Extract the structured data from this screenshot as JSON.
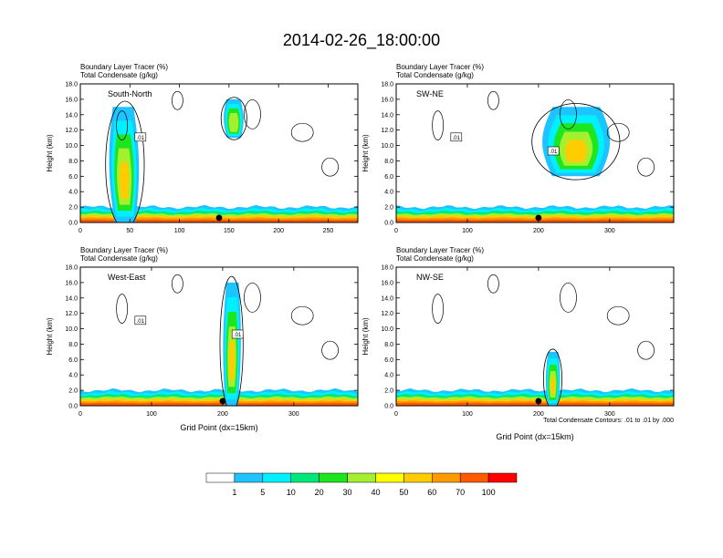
{
  "title": "2014-02-26_18:00:00",
  "variables": [
    "Boundary Layer Tracer   (%)",
    "Total Condensate   (g/kg)"
  ],
  "colorbar": {
    "labels": [
      "1",
      "5",
      "10",
      "20",
      "30",
      "40",
      "50",
      "60",
      "70",
      "100"
    ],
    "colors": [
      "#ffffff",
      "#2e8bff",
      "#1ec4ff",
      "#00f0ff",
      "#00e87a",
      "#1ee61e",
      "#a4f030",
      "#ffff00",
      "#ffcc00",
      "#ff9a00",
      "#ff5a00",
      "#ff0000"
    ]
  },
  "contour_note": "Total Condensate Contours: .01 to .01 by .000",
  "xlabel": "Grid Point (dx=15km)",
  "ylabel": "Height (km)",
  "chart_data": [
    {
      "type": "heatmap",
      "panel": "South-North",
      "title": "Boundary Layer Tracer (%) / Total Condensate (g/kg)",
      "xlabel": "",
      "ylabel": "Height (km)",
      "xlim": [
        0,
        280
      ],
      "ylim": [
        0,
        18
      ],
      "xticks": [
        0,
        50,
        100,
        150,
        200,
        250
      ],
      "yticks": [
        0,
        2,
        4,
        6,
        8,
        10,
        12,
        14,
        16,
        18
      ],
      "contour_labels": [
        ".01"
      ],
      "features": [
        {
          "name": "boundary layer",
          "x_range": [
            0,
            280
          ],
          "z_top_km": 2.0,
          "max_pct": 100
        },
        {
          "name": "deep convective plume",
          "x_range": [
            30,
            60
          ],
          "z_top_km": 15.0,
          "max_pct": 70
        },
        {
          "name": "upper level cloud",
          "x_range": [
            145,
            165
          ],
          "z_range_km": [
            11,
            16
          ],
          "max_pct": 40
        }
      ],
      "marker_x": 140
    },
    {
      "type": "heatmap",
      "panel": "SW-NE",
      "title": "Boundary Layer Tracer (%) / Total Condensate (g/kg)",
      "xlabel": "",
      "ylabel": "Height (km)",
      "xlim": [
        0,
        390
      ],
      "ylim": [
        0,
        18
      ],
      "xticks": [
        0,
        100,
        200,
        300
      ],
      "yticks": [
        0,
        2,
        4,
        6,
        8,
        10,
        12,
        14,
        16,
        18
      ],
      "contour_labels": [
        ".01",
        ".01"
      ],
      "features": [
        {
          "name": "boundary layer",
          "x_range": [
            0,
            390
          ],
          "z_top_km": 2.0,
          "max_pct": 100
        },
        {
          "name": "upper plume",
          "x_range": [
            205,
            300
          ],
          "z_range_km": [
            6,
            15
          ],
          "max_pct": 60
        }
      ],
      "marker_x": 200
    },
    {
      "type": "heatmap",
      "panel": "West-East",
      "title": "Boundary Layer Tracer (%) / Total Condensate (g/kg)",
      "xlabel": "Grid Point (dx=15km)",
      "ylabel": "Height (km)",
      "xlim": [
        0,
        390
      ],
      "ylim": [
        0,
        18
      ],
      "xticks": [
        0,
        100,
        200,
        300
      ],
      "yticks": [
        0,
        2,
        4,
        6,
        8,
        10,
        12,
        14,
        16,
        18
      ],
      "contour_labels": [
        ".01",
        ".01"
      ],
      "features": [
        {
          "name": "boundary layer",
          "x_range": [
            0,
            390
          ],
          "z_top_km": 2.0,
          "max_pct": 100
        },
        {
          "name": "narrow deep plume",
          "x_range": [
            200,
            225
          ],
          "z_top_km": 16.0,
          "max_pct": 60
        }
      ],
      "marker_x": 200
    },
    {
      "type": "heatmap",
      "panel": "NW-SE",
      "title": "Boundary Layer Tracer (%) / Total Condensate (g/kg)",
      "xlabel": "Grid Point (dx=15km)",
      "ylabel": "Height (km)",
      "xlim": [
        0,
        390
      ],
      "ylim": [
        0,
        18
      ],
      "xticks": [
        0,
        100,
        200,
        300
      ],
      "yticks": [
        0,
        2,
        4,
        6,
        8,
        10,
        12,
        14,
        16,
        18
      ],
      "contour_labels": [],
      "features": [
        {
          "name": "boundary layer",
          "x_range": [
            0,
            390
          ],
          "z_top_km": 2.0,
          "max_pct": 100
        },
        {
          "name": "shallow plume",
          "x_range": [
            210,
            230
          ],
          "z_top_km": 7.0,
          "max_pct": 60
        }
      ],
      "marker_x": 200
    }
  ]
}
